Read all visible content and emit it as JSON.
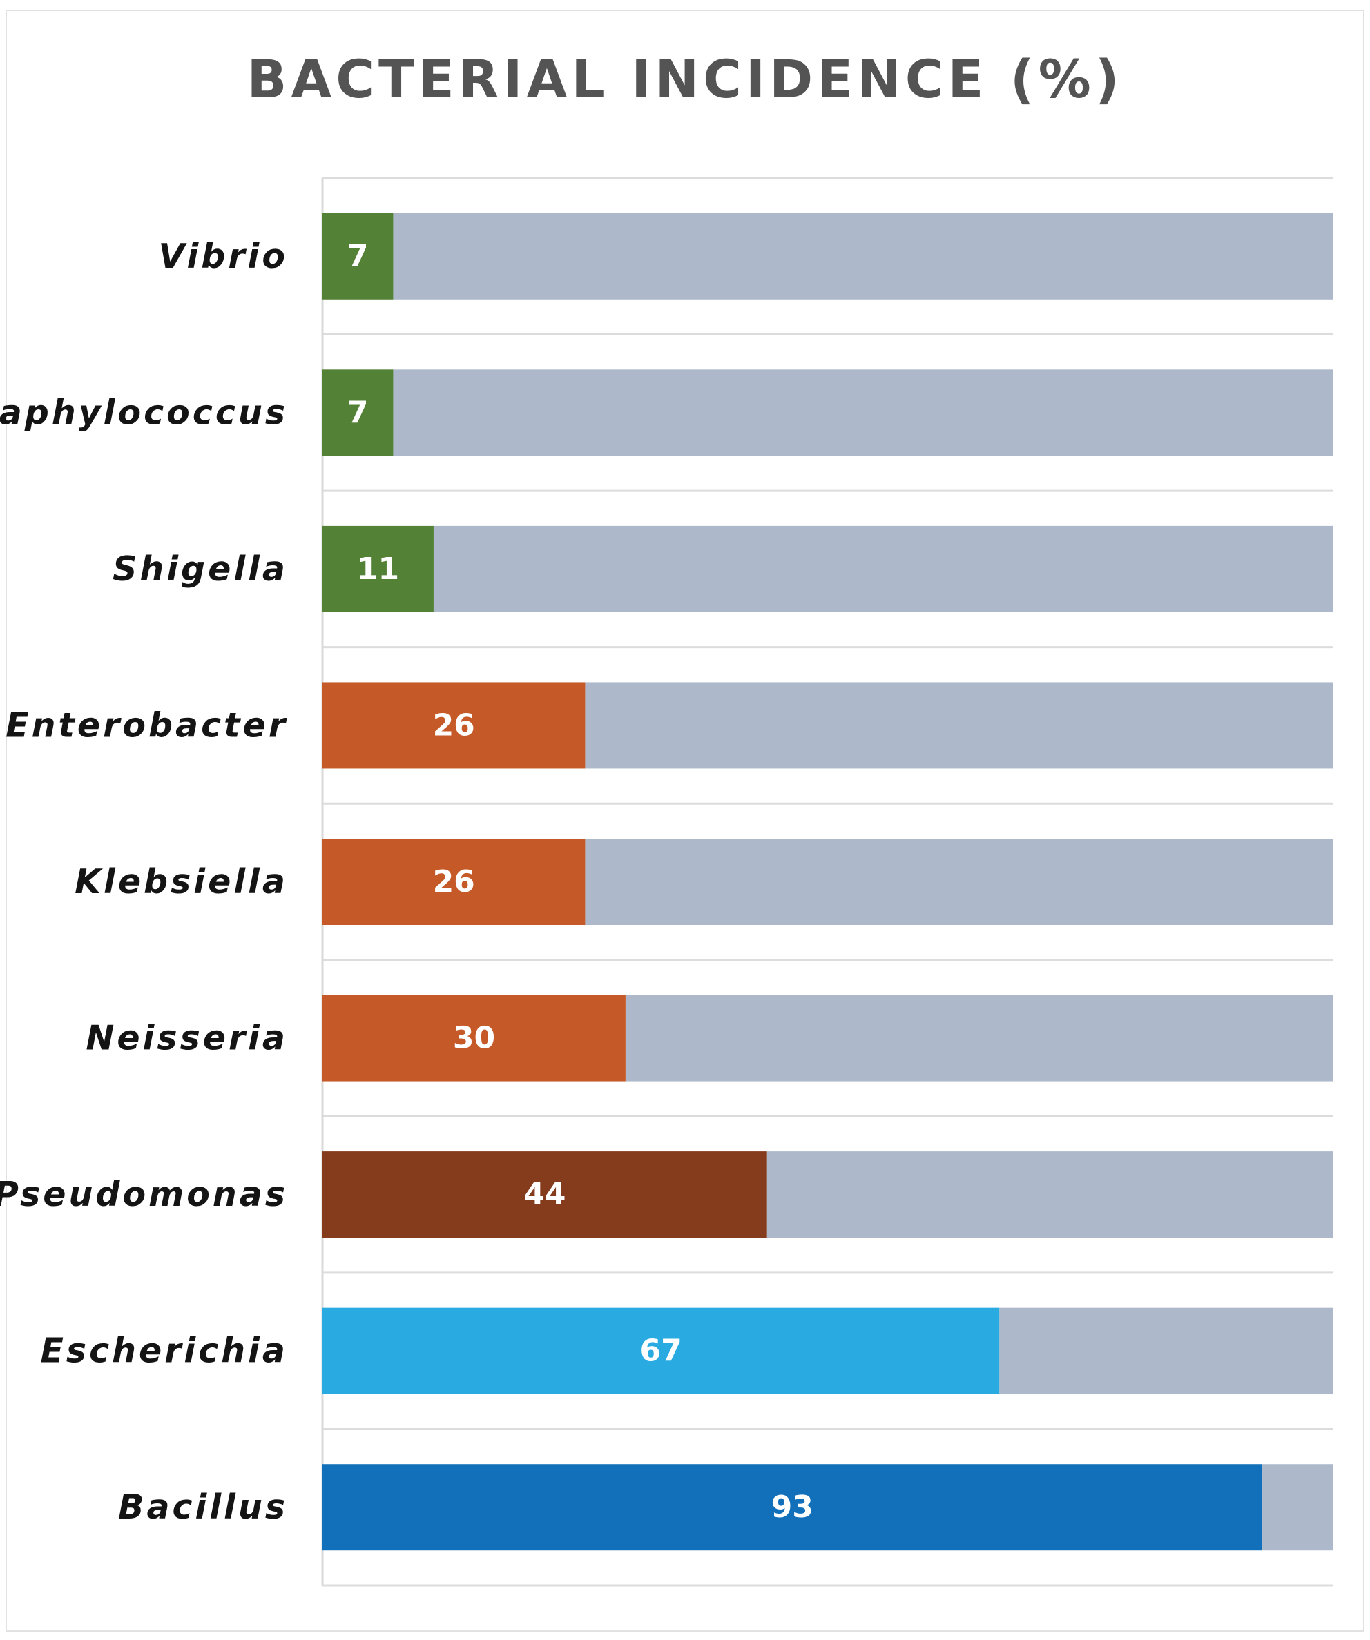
{
  "chart_data": {
    "type": "bar",
    "orientation": "horizontal",
    "stacked_with_remainder": true,
    "title": "BACTERIAL INCIDENCE (%)",
    "xlabel": "",
    "ylabel": "",
    "xlim": [
      0,
      100
    ],
    "grid": true,
    "legend": "none",
    "categories": [
      "Vibrio",
      "Staphylococcus",
      "Shigella",
      "Enterobacter",
      "Klebsiella",
      "Neisseria",
      "Pseudomonas",
      "Escherichia",
      "Bacillus"
    ],
    "values": [
      7,
      7,
      11,
      26,
      26,
      30,
      44,
      67,
      93
    ],
    "bar_colors": [
      "#538135",
      "#538135",
      "#538135",
      "#C55A28",
      "#C55A28",
      "#C55A28",
      "#843C1C",
      "#29ABE2",
      "#1170B9"
    ],
    "remainder_color": "#ADB9CA",
    "value_label_color": "#FFFFFF"
  }
}
